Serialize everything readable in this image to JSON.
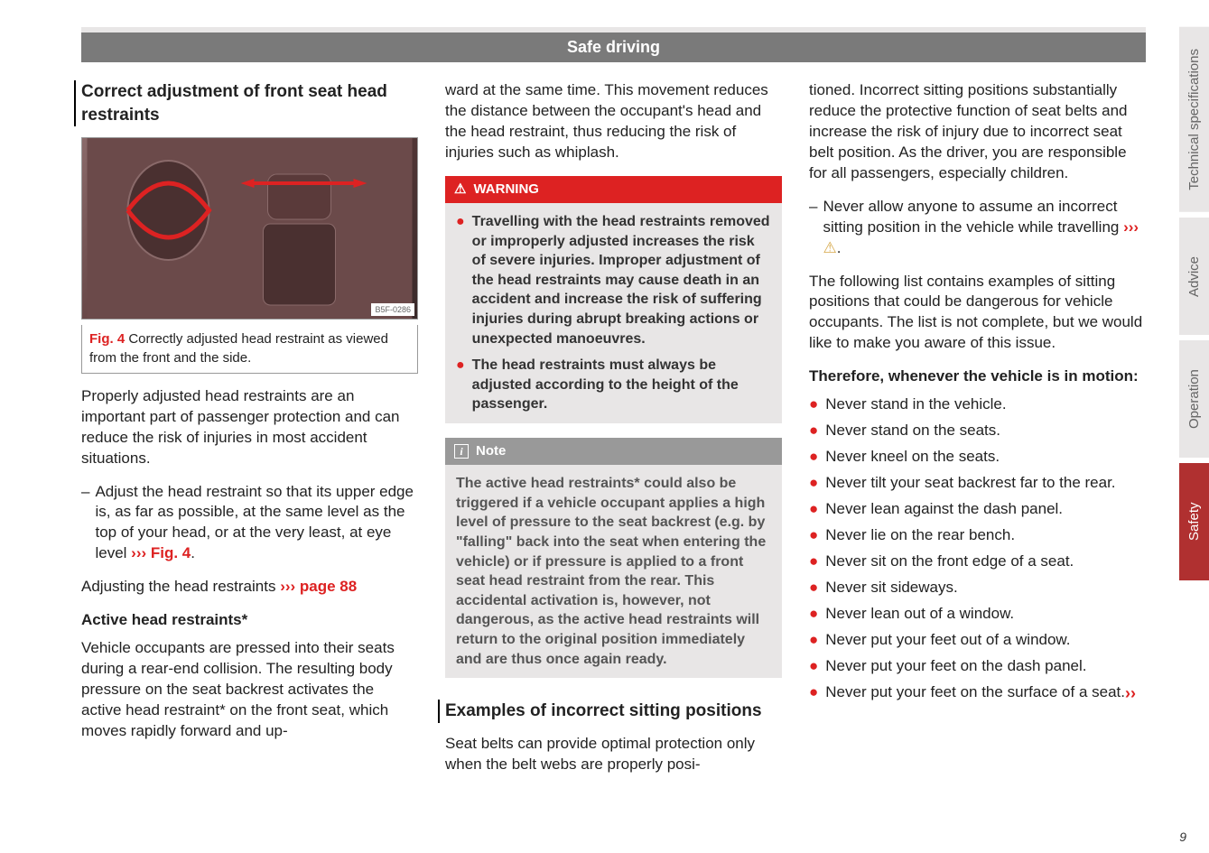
{
  "header": "Safe driving",
  "col1": {
    "title": "Correct adjustment of front seat head restraints",
    "fig_code": "B5F-0286",
    "fig_label": "Fig. 4",
    "fig_caption": "Correctly adjusted head restraint as viewed from the front and the side.",
    "p1": "Properly adjusted head restraints are an important part of passenger protection and can reduce the risk of injuries in most accident situations.",
    "dash1_pre": "Adjust the head restraint so that its upper edge is, as far as possible, at the same level as the top of your head, or at the very least, at eye level ",
    "dash1_ref": "››› Fig. 4",
    "adj_pre": "Adjusting the head restraints ",
    "adj_ref": "››› page 88",
    "sub": "Active head restraints*",
    "p2": "Vehicle occupants are pressed into their seats during a rear-end collision. The resulting body pressure on the seat backrest activates the active head restraint* on the front seat, which moves rapidly forward and up-"
  },
  "col2": {
    "p1": "ward at the same time. This movement reduces the distance between the occupant's head and the head restraint, thus reducing the risk of injuries such as whiplash.",
    "warn_title": "WARNING",
    "warn1": "Travelling with the head restraints removed or improperly adjusted increases the risk of severe injuries. Improper adjustment of the head restraints may cause death in an accident and increase the risk of suffering injuries during abrupt breaking actions or unexpected manoeuvres.",
    "warn2": "The head restraints must always be adjusted according to the height of the passenger.",
    "note_title": "Note",
    "note_body": "The active head restraints* could also be triggered if a vehicle occupant applies a high level of pressure to the seat backrest (e.g. by \"falling\" back into the seat when entering the vehicle) or if pressure is applied to a front seat head restraint from the rear. This accidental activation is, however, not dangerous, as the active head restraints will return to the original position immediately and are thus once again ready.",
    "title2": "Examples of incorrect sitting positions",
    "p2": "Seat belts can provide optimal protection only when the belt webs are properly posi-"
  },
  "col3": {
    "p1": "tioned. Incorrect sitting positions substantially reduce the protective function of seat belts and increase the risk of injury due to incorrect seat belt position. As the driver, you are responsible for all passengers, especially children.",
    "dash1_pre": "Never allow anyone to assume an incorrect sitting position in the vehicle while travelling ",
    "dash1_ref": "›››",
    "p2": "The following list contains examples of sitting positions that could be dangerous for vehicle occupants. The list is not complete, but we would like to make you aware of this issue.",
    "sub": "Therefore, whenever the vehicle is in motion:",
    "bullets": [
      "Never stand in the vehicle.",
      "Never stand on the seats.",
      "Never kneel on the seats.",
      "Never tilt your seat backrest far to the rear.",
      "Never lean against the dash panel.",
      "Never lie on the rear bench.",
      "Never sit on the front edge of a seat.",
      "Never sit sideways.",
      "Never lean out of a window.",
      "Never put your feet out of a window.",
      "Never put your feet on the dash panel.",
      "Never put your feet on the surface of a seat."
    ]
  },
  "tabs": [
    "Technical specifications",
    "Advice",
    "Operation",
    "Safety"
  ],
  "page_num": "9"
}
